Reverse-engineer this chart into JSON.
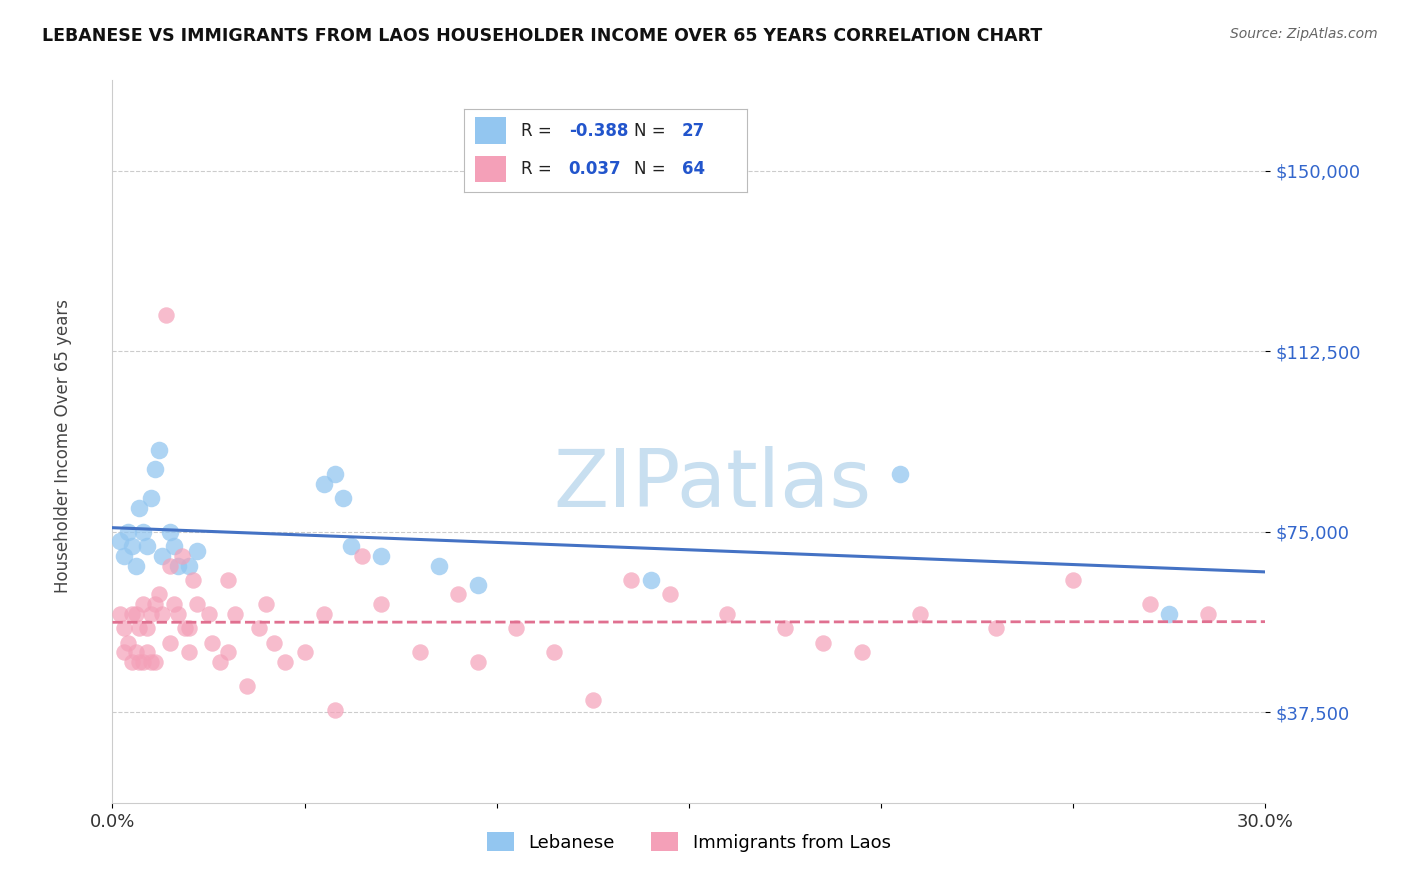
{
  "title": "LEBANESE VS IMMIGRANTS FROM LAOS HOUSEHOLDER INCOME OVER 65 YEARS CORRELATION CHART",
  "source": "Source: ZipAtlas.com",
  "ylabel": "Householder Income Over 65 years",
  "xlim": [
    0.0,
    30.0
  ],
  "ylim": [
    18750,
    168750
  ],
  "yticks": [
    37500,
    75000,
    112500,
    150000
  ],
  "ytick_labels": [
    "$37,500",
    "$75,000",
    "$112,500",
    "$150,000"
  ],
  "xticks": [
    0.0,
    5.0,
    10.0,
    15.0,
    20.0,
    25.0,
    30.0
  ],
  "R_lebanese": -0.388,
  "N_lebanese": 27,
  "R_laos": 0.037,
  "N_laos": 64,
  "color_lebanese": "#93c6f0",
  "color_laos": "#f4a0b8",
  "line_color_lebanese": "#4472c4",
  "line_color_laos": "#e07090",
  "watermark_color": "#c8dff0",
  "lebanese_x": [
    0.2,
    0.3,
    0.4,
    0.5,
    0.6,
    0.7,
    0.8,
    0.9,
    1.0,
    1.1,
    1.2,
    1.3,
    1.5,
    1.6,
    1.7,
    2.0,
    2.2,
    5.5,
    5.8,
    6.0,
    6.2,
    7.0,
    8.5,
    9.5,
    14.0,
    20.5,
    27.5
  ],
  "lebanese_y": [
    73000,
    70000,
    75000,
    72000,
    68000,
    80000,
    75000,
    72000,
    82000,
    88000,
    92000,
    70000,
    75000,
    72000,
    68000,
    68000,
    71000,
    85000,
    87000,
    82000,
    72000,
    70000,
    68000,
    64000,
    65000,
    87000,
    58000
  ],
  "laos_x": [
    0.2,
    0.3,
    0.3,
    0.4,
    0.5,
    0.5,
    0.6,
    0.6,
    0.7,
    0.7,
    0.8,
    0.8,
    0.9,
    0.9,
    1.0,
    1.0,
    1.1,
    1.1,
    1.2,
    1.3,
    1.4,
    1.5,
    1.5,
    1.6,
    1.7,
    1.8,
    1.9,
    2.0,
    2.0,
    2.1,
    2.2,
    2.5,
    2.6,
    2.8,
    3.0,
    3.0,
    3.2,
    3.5,
    3.8,
    4.0,
    4.2,
    4.5,
    5.0,
    5.5,
    5.8,
    6.5,
    7.0,
    8.0,
    9.0,
    9.5,
    10.5,
    11.5,
    12.5,
    13.5,
    14.5,
    16.0,
    17.5,
    18.5,
    19.5,
    21.0,
    23.0,
    25.0,
    27.0,
    28.5
  ],
  "laos_y": [
    58000,
    55000,
    50000,
    52000,
    58000,
    48000,
    58000,
    50000,
    55000,
    48000,
    60000,
    48000,
    55000,
    50000,
    58000,
    48000,
    60000,
    48000,
    62000,
    58000,
    120000,
    68000,
    52000,
    60000,
    58000,
    70000,
    55000,
    55000,
    50000,
    65000,
    60000,
    58000,
    52000,
    48000,
    65000,
    50000,
    58000,
    43000,
    55000,
    60000,
    52000,
    48000,
    50000,
    58000,
    38000,
    70000,
    60000,
    50000,
    62000,
    48000,
    55000,
    50000,
    40000,
    65000,
    62000,
    58000,
    55000,
    52000,
    50000,
    58000,
    55000,
    65000,
    60000,
    58000
  ]
}
